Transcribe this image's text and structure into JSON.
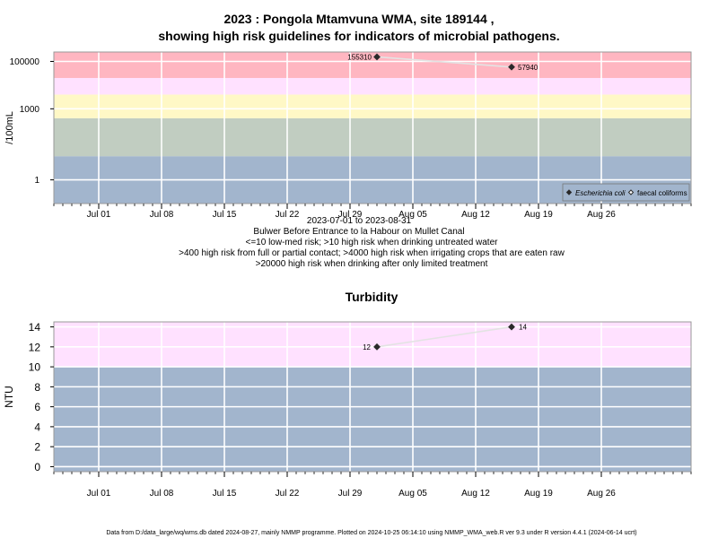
{
  "chart_data": [
    {
      "type": "line",
      "title_line1": "2023 : Pongola Mtamvuna WMA, site 189144 ,",
      "title_line2": "showing high risk guidelines for indicators of microbial pathogens.",
      "ylabel": "/100mL",
      "yscale": "log",
      "ylim": [
        0.1,
        250000
      ],
      "x_domain": [
        "2023-06-26",
        "2023-09-05"
      ],
      "x_ticks": [
        {
          "date": "2023-07-01",
          "label": "Jul 01"
        },
        {
          "date": "2023-07-08",
          "label": "Jul 08"
        },
        {
          "date": "2023-07-15",
          "label": "Jul 15"
        },
        {
          "date": "2023-07-22",
          "label": "Jul 22"
        },
        {
          "date": "2023-07-29",
          "label": "Jul 29"
        },
        {
          "date": "2023-08-05",
          "label": "Aug 05"
        },
        {
          "date": "2023-08-12",
          "label": "Aug 12"
        },
        {
          "date": "2023-08-19",
          "label": "Aug 19"
        },
        {
          "date": "2023-08-26",
          "label": "Aug 26"
        }
      ],
      "y_ticks": [
        {
          "value": 1,
          "label": "1"
        },
        {
          "value": 1000,
          "label": "1000"
        },
        {
          "value": 100000,
          "label": "100000"
        }
      ],
      "bands": [
        {
          "from": 0.1,
          "to": 10,
          "color": "#a2b5cd"
        },
        {
          "from": 10,
          "to": 400,
          "color": "#c1cdc1"
        },
        {
          "from": 400,
          "to": 4000,
          "color": "#fff8c6"
        },
        {
          "from": 4000,
          "to": 20000,
          "color": "#ffe1ff"
        },
        {
          "from": 20000,
          "to": 250000,
          "color": "#ffb6c1"
        }
      ],
      "series": [
        {
          "name": "Escherichia coli",
          "marker": "filled-diamond",
          "x": [
            "2023-08-01",
            "2023-08-16"
          ],
          "y": [
            155310,
            57940
          ],
          "labels": [
            "155310",
            "57940"
          ]
        },
        {
          "name": "faecal coliforms",
          "marker": "open-diamond",
          "x": [],
          "y": [],
          "labels": []
        }
      ],
      "legend_position": "bottom-right",
      "grid": true,
      "date_range": "2023-07-01 to 2023-08-31",
      "site_description": "Bulwer Before Entrance to la Habour on Mullet Canal",
      "notes": [
        "<=10 low-med risk; >10 high risk when drinking untreated water",
        ">400 high risk from full or partial contact; >4000 high risk when irrigating crops that are eaten raw",
        ">20000 high risk when drinking after only limited treatment"
      ]
    },
    {
      "type": "line",
      "title": "Turbidity",
      "ylabel": "NTU",
      "yscale": "linear",
      "ylim": [
        -0.5,
        14.5
      ],
      "x_domain": [
        "2023-06-26",
        "2023-09-05"
      ],
      "x_ticks": [
        {
          "date": "2023-07-01",
          "label": "Jul 01"
        },
        {
          "date": "2023-07-08",
          "label": "Jul 08"
        },
        {
          "date": "2023-07-15",
          "label": "Jul 15"
        },
        {
          "date": "2023-07-22",
          "label": "Jul 22"
        },
        {
          "date": "2023-07-29",
          "label": "Jul 29"
        },
        {
          "date": "2023-08-05",
          "label": "Aug 05"
        },
        {
          "date": "2023-08-12",
          "label": "Aug 12"
        },
        {
          "date": "2023-08-19",
          "label": "Aug 19"
        },
        {
          "date": "2023-08-26",
          "label": "Aug 26"
        }
      ],
      "y_ticks": [
        {
          "value": 0,
          "label": "0"
        },
        {
          "value": 2,
          "label": "2"
        },
        {
          "value": 4,
          "label": "4"
        },
        {
          "value": 6,
          "label": "6"
        },
        {
          "value": 8,
          "label": "8"
        },
        {
          "value": 10,
          "label": "10"
        },
        {
          "value": 12,
          "label": "12"
        },
        {
          "value": 14,
          "label": "14"
        }
      ],
      "bands": [
        {
          "from": -0.5,
          "to": 10,
          "color": "#a2b5cd"
        },
        {
          "from": 10,
          "to": 14.5,
          "color": "#ffe1ff"
        }
      ],
      "series": [
        {
          "marker": "filled-diamond",
          "x": [
            "2023-08-01",
            "2023-08-16"
          ],
          "y": [
            12,
            14
          ],
          "labels": [
            "12",
            "14"
          ]
        }
      ],
      "grid": true
    }
  ],
  "footer": "Data from D:/data_large/wq/wms.db dated 2024-08-27, mainly NMMP programme. Plotted on 2024-10-25 06:14:10 using NMMP_WMA_web.R ver 9.3 under R version 4.4.1 (2024-06-14 ucrt)"
}
